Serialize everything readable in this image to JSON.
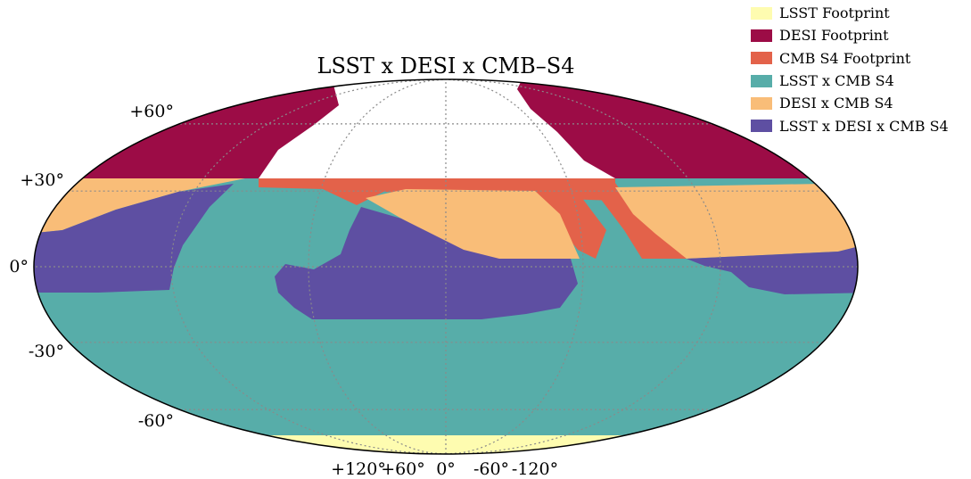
{
  "chart_data": {
    "type": "area",
    "title": "LSST x DESI x CMB–S4",
    "projection": "mollweide",
    "grid": true,
    "legend_placement": "top-right",
    "lat_ticks": [
      "+60°",
      "+30°",
      "0°",
      "-30°",
      "-60°"
    ],
    "lon_ticks": [
      "+120°",
      "+60°",
      "0°",
      "-60°",
      "-120°"
    ],
    "legend": [
      {
        "key": "lsst",
        "label": "LSST Footprint",
        "color": "#fefcb0"
      },
      {
        "key": "desi",
        "label": "DESI Footprint",
        "color": "#9c0c46"
      },
      {
        "key": "cmb",
        "label": "CMB S4 Footprint",
        "color": "#e3624a"
      },
      {
        "key": "lsst_cmb",
        "label": "LSST x CMB S4",
        "color": "#57ada9"
      },
      {
        "key": "desi_cmb",
        "label": "DESI x CMB S4",
        "color": "#f9bd78"
      },
      {
        "key": "all3",
        "label": "LSST x DESI x CMB S4",
        "color": "#5e4fa2"
      }
    ]
  }
}
